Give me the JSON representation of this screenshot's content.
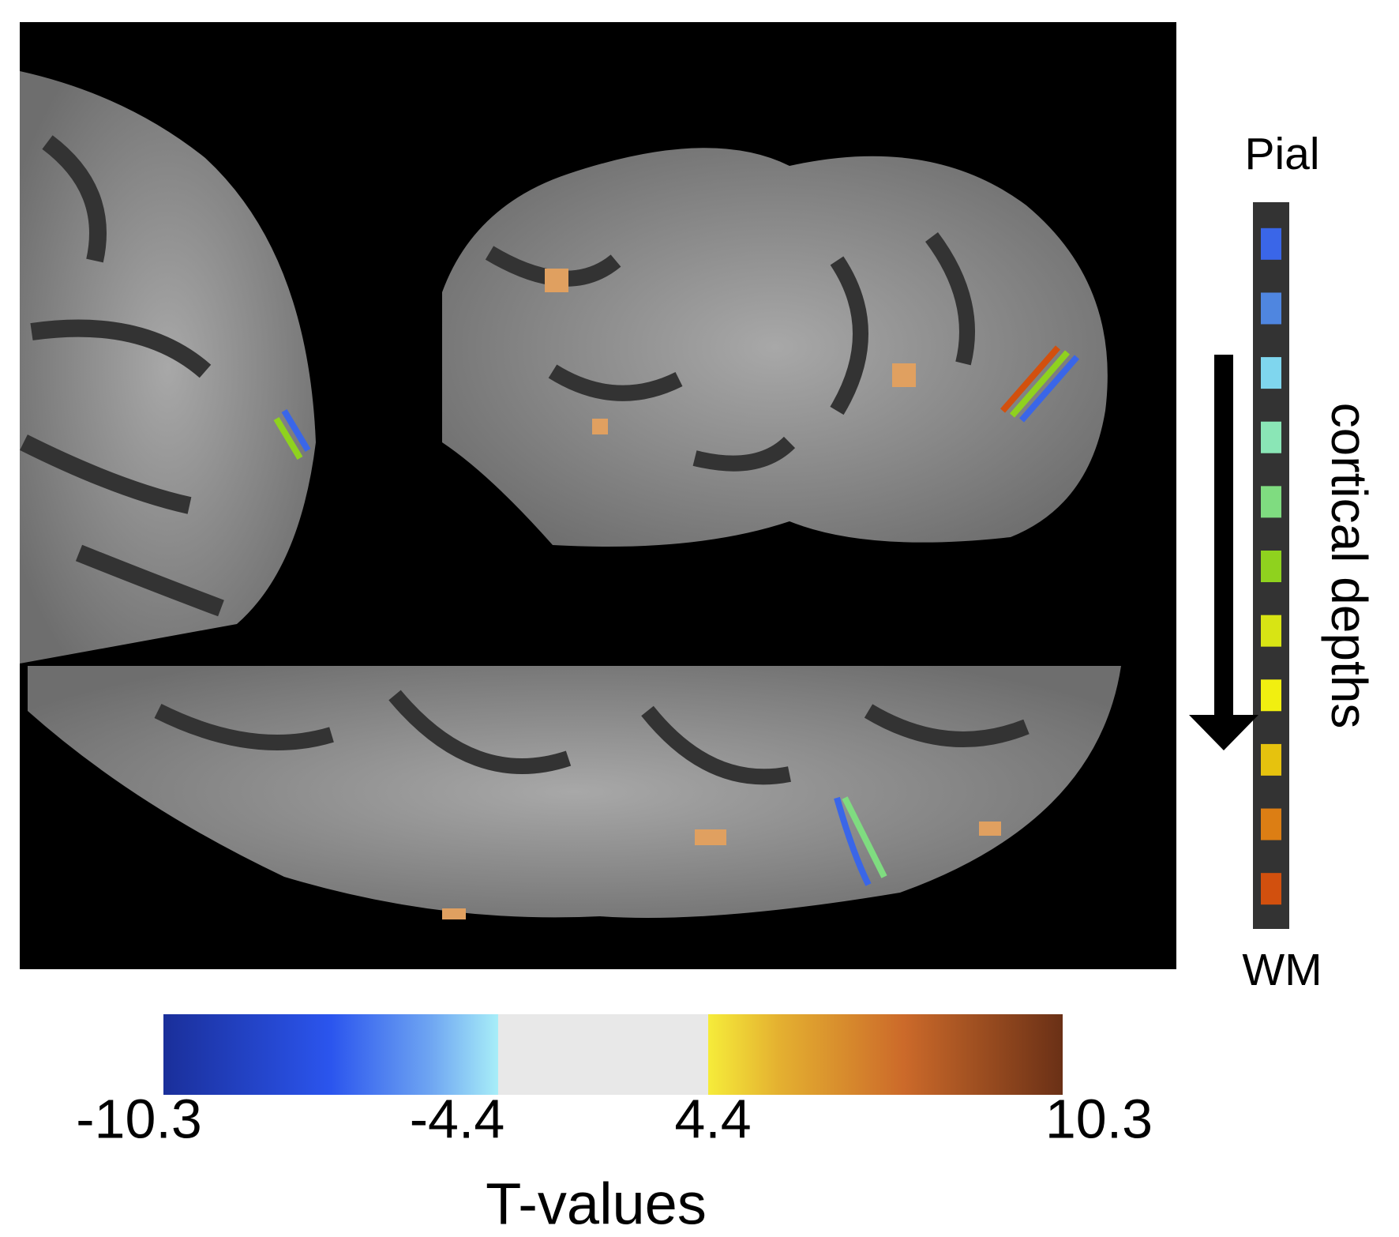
{
  "depth_legend": {
    "top_label": "Pial",
    "bottom_label": "WM",
    "axis_label": "cortical depths",
    "colors": [
      "#3a66e8",
      "#4f86e0",
      "#7fd6ee",
      "#8ae6b6",
      "#7fdc80",
      "#8fd21e",
      "#d8e414",
      "#f1ef10",
      "#e6c20e",
      "#dc7e14",
      "#d2500e"
    ]
  },
  "colorbar": {
    "ticks": [
      "-10.3",
      "-4.4",
      "4.4",
      "10.3"
    ],
    "label": "T-values"
  }
}
